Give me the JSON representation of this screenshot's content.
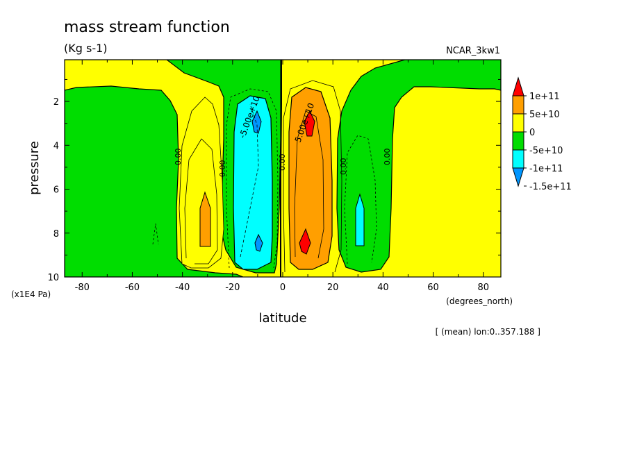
{
  "chart_data": {
    "type": "heatmap",
    "title": "mass stream function",
    "subtitle": "(Kg s-1)",
    "run_label": "NCAR_3kw1",
    "xlabel": "latitude",
    "xunit": "(degrees_north)",
    "ylabel": "pressure",
    "yunit": "(x1E4 Pa)",
    "footnote": "[ (mean) lon:0..357.188 ]",
    "xlim": [
      -87,
      87
    ],
    "ylim": [
      10,
      0.1
    ],
    "x_ticks": [
      "-80",
      "-60",
      "-40",
      "-20",
      "0",
      "20",
      "40",
      "60",
      "80"
    ],
    "x_tick_values": [
      -80,
      -60,
      -40,
      -20,
      0,
      20,
      40,
      60,
      80
    ],
    "y_ticks": [
      "2",
      "4",
      "6",
      "8",
      "10"
    ],
    "y_tick_values": [
      2,
      4,
      6,
      8,
      10
    ],
    "legend": {
      "position": "right",
      "levels": [
        {
          "label": "1e+11",
          "color": "#ff0000"
        },
        {
          "label": "5e+10",
          "color": "#ff9f00"
        },
        {
          "label": "0",
          "color": "#ffff00"
        },
        {
          "label": "-5e+10",
          "color": "#00dd00"
        },
        {
          "label": "-1e+11",
          "color": "#00ffff"
        },
        {
          "label": "-1.5e+11",
          "color": "#0096ff"
        }
      ],
      "colors_bottom_to_top": [
        "#0096ff",
        "#00ffff",
        "#00dd00",
        "#ffff00",
        "#ff9f00",
        "#ff0000"
      ]
    },
    "contour_labels": [
      {
        "text": "-5.00e+10",
        "lon": -10.5,
        "p": 3.2
      },
      {
        "text": "5.00e+10",
        "lon": 7.0,
        "p": 3.0
      },
      {
        "text": "0.00",
        "lon": -41,
        "p": 4.3
      },
      {
        "text": "0.00",
        "lon": -24,
        "p": 4.9
      },
      {
        "text": "0.00",
        "lon": -0.5,
        "p": 4.5
      },
      {
        "text": "0.00",
        "lon": 24,
        "p": 4.9
      },
      {
        "text": "0.00",
        "lon": 42,
        "p": 4.3
      }
    ]
  }
}
